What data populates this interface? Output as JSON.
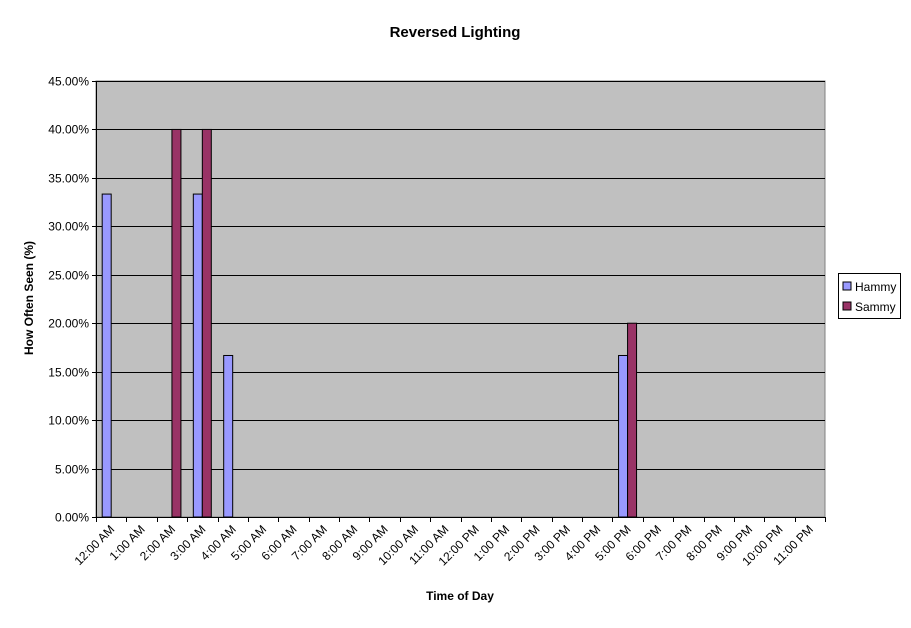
{
  "chart_data": {
    "type": "bar",
    "title": "Reversed Lighting",
    "xlabel": "Time of Day",
    "ylabel": "How Often Seen (%)",
    "ylim": [
      0,
      45
    ],
    "ytick_step": 5,
    "ytick_labels": [
      "0.00%",
      "5.00%",
      "10.00%",
      "15.00%",
      "20.00%",
      "25.00%",
      "30.00%",
      "35.00%",
      "40.00%",
      "45.00%"
    ],
    "grid": true,
    "legend_position": "right",
    "plot_background": "#c0c0c0",
    "categories": [
      "12:00 AM",
      "1:00 AM",
      "2:00 AM",
      "3:00 AM",
      "4:00 AM",
      "5:00 AM",
      "6:00 AM",
      "7:00 AM",
      "8:00 AM",
      "9:00 AM",
      "10:00 AM",
      "11:00 AM",
      "12:00 PM",
      "1:00 PM",
      "2:00 PM",
      "3:00 PM",
      "4:00 PM",
      "5:00 PM",
      "6:00 PM",
      "7:00 PM",
      "8:00 PM",
      "9:00 PM",
      "10:00 PM",
      "11:00 PM"
    ],
    "series": [
      {
        "name": "Hammy",
        "color": "#9999ff",
        "values": [
          33.33,
          0,
          0,
          33.33,
          16.67,
          0,
          0,
          0,
          0,
          0,
          0,
          0,
          0,
          0,
          0,
          0,
          0,
          16.67,
          0,
          0,
          0,
          0,
          0,
          0
        ]
      },
      {
        "name": "Sammy",
        "color": "#993366",
        "values": [
          0,
          0,
          40,
          40,
          0,
          0,
          0,
          0,
          0,
          0,
          0,
          0,
          0,
          0,
          0,
          0,
          0,
          20,
          0,
          0,
          0,
          0,
          0,
          0
        ]
      }
    ]
  }
}
